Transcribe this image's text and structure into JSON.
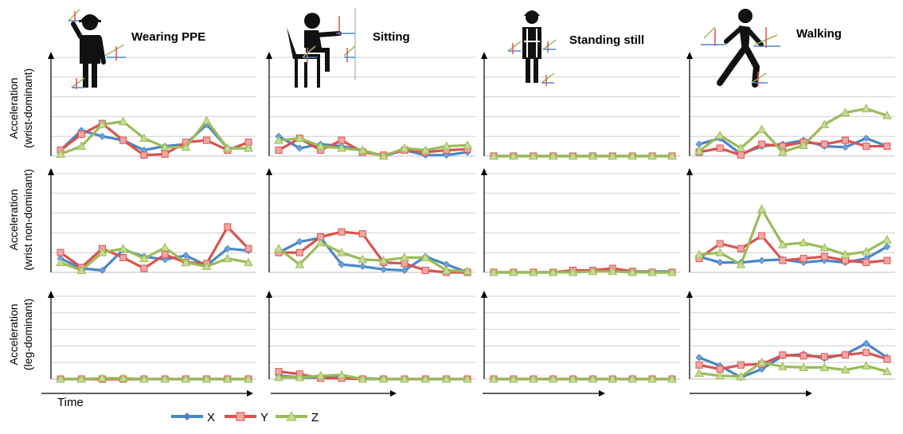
{
  "chart_data": {
    "type": "line",
    "layout": "grid-3x4",
    "columns": [
      {
        "title": "Wearing PPE",
        "icon": "worker-hardhat-icon"
      },
      {
        "title": "Sitting",
        "icon": "person-sitting-icon"
      },
      {
        "title": "Standing still",
        "icon": "worker-vest-standing-icon"
      },
      {
        "title": "Walking",
        "icon": "person-walking-icon"
      }
    ],
    "rows": [
      {
        "ylabel": [
          "Acceleration",
          "(wrist-dominant)"
        ]
      },
      {
        "ylabel": [
          "Acceleration",
          "(wrist non-dominant)"
        ]
      },
      {
        "ylabel": [
          "Acceleration",
          "(leg-dominant)"
        ]
      }
    ],
    "xlabel": "Time",
    "ylim": [
      0,
      5
    ],
    "grid": true,
    "legend_position": "bottom",
    "colors": {
      "X": "#4a86c8",
      "Y": "#d9534f",
      "Z": "#9bbb59"
    },
    "series_names": [
      "X",
      "Y",
      "Z"
    ],
    "panels": [
      [
        {
          "X": [
            0.3,
            1.3,
            1.0,
            0.8,
            0.3,
            0.5,
            0.6,
            1.6,
            0.4,
            0.4
          ],
          "Y": [
            0.3,
            1.1,
            1.65,
            0.8,
            0.05,
            0.1,
            0.7,
            0.8,
            0.3,
            0.7
          ],
          "Z": [
            0.1,
            0.5,
            1.6,
            1.75,
            0.9,
            0.45,
            0.45,
            1.8,
            0.4,
            0.4
          ]
        },
        {
          "X": [
            1.0,
            0.4,
            0.6,
            0.5,
            0.3,
            0.0,
            0.3,
            0.05,
            0.05,
            0.2
          ],
          "Y": [
            0.3,
            0.9,
            0.3,
            0.8,
            0.2,
            0.05,
            0.3,
            0.2,
            0.3,
            0.35
          ],
          "Z": [
            0.8,
            0.9,
            0.5,
            0.4,
            0.3,
            0.0,
            0.4,
            0.3,
            0.5,
            0.55
          ]
        },
        {
          "X": [
            0,
            0,
            0,
            0,
            0,
            0,
            0,
            0,
            0,
            0
          ],
          "Y": [
            0,
            0,
            0,
            0,
            0,
            0,
            0,
            0,
            0,
            0
          ],
          "Z": [
            0,
            0,
            0,
            0,
            0,
            0,
            0,
            0,
            0,
            0
          ]
        },
        {
          "X": [
            0.6,
            0.9,
            0.1,
            0.5,
            0.6,
            0.8,
            0.5,
            0.45,
            0.9,
            0.5
          ],
          "Y": [
            0.2,
            0.4,
            0.05,
            0.6,
            0.5,
            0.7,
            0.6,
            0.8,
            0.5,
            0.5
          ],
          "Z": [
            0.25,
            1.05,
            0.4,
            1.35,
            0.2,
            0.55,
            1.6,
            2.2,
            2.4,
            2.05
          ]
        }
      ],
      [
        {
          "X": [
            0.7,
            0.2,
            0.1,
            1.15,
            0.8,
            0.65,
            0.85,
            0.35,
            1.2,
            1.1
          ],
          "Y": [
            1.0,
            0.25,
            1.2,
            0.75,
            0.2,
            0.9,
            0.5,
            0.45,
            2.3,
            1.2
          ],
          "Z": [
            0.5,
            0.1,
            1.0,
            1.2,
            0.7,
            1.25,
            0.5,
            0.3,
            0.7,
            0.5
          ]
        },
        {
          "X": [
            1.0,
            1.55,
            1.75,
            0.4,
            0.3,
            0.15,
            0.1,
            0.8,
            0.4,
            0.0
          ],
          "Y": [
            1.0,
            1.0,
            1.8,
            2.05,
            1.95,
            0.5,
            0.45,
            0.1,
            0.0,
            0.0
          ],
          "Z": [
            1.2,
            0.4,
            1.5,
            1.0,
            0.65,
            0.6,
            0.75,
            0.75,
            0.1,
            0.05
          ]
        },
        {
          "X": [
            0,
            0,
            0,
            0,
            0.05,
            0.05,
            0.1,
            0.05,
            0.05,
            0.05
          ],
          "Y": [
            0,
            0,
            0,
            0,
            0.1,
            0.1,
            0.2,
            0.05,
            0,
            0
          ],
          "Z": [
            0,
            0,
            0,
            0,
            0,
            0.05,
            0.05,
            0,
            0,
            0
          ]
        },
        {
          "X": [
            0.8,
            0.5,
            0.5,
            0.6,
            0.65,
            0.5,
            0.6,
            0.5,
            0.7,
            1.3
          ],
          "Y": [
            0.7,
            1.45,
            1.2,
            1.85,
            0.6,
            0.7,
            0.8,
            0.6,
            0.5,
            0.6
          ],
          "Z": [
            0.9,
            1.0,
            0.4,
            3.2,
            1.4,
            1.5,
            1.25,
            0.9,
            1.05,
            1.65
          ]
        }
      ],
      [
        {
          "X": [
            0,
            0,
            0,
            0,
            0,
            0,
            0,
            0,
            0,
            0
          ],
          "Y": [
            0,
            0,
            0,
            0,
            0,
            0,
            0,
            0,
            0,
            0
          ],
          "Z": [
            0,
            0,
            0.05,
            0.05,
            0,
            0,
            0,
            0,
            0,
            0
          ]
        },
        {
          "X": [
            0.2,
            0.1,
            0.1,
            0.1,
            0.05,
            0,
            0,
            0,
            0,
            0
          ],
          "Y": [
            0.45,
            0.3,
            0.05,
            0.05,
            0,
            0,
            0,
            0,
            0,
            0
          ],
          "Z": [
            0.1,
            0.1,
            0.2,
            0.25,
            0,
            0,
            0,
            0,
            0,
            0
          ]
        },
        {
          "X": [
            0,
            0,
            0,
            0,
            0,
            0,
            0,
            0,
            0,
            0
          ],
          "Y": [
            0,
            0,
            0,
            0,
            0,
            0,
            0,
            0,
            0,
            0
          ],
          "Z": [
            0,
            0,
            0,
            0,
            0,
            0,
            0,
            0,
            0,
            0
          ]
        },
        {
          "X": [
            1.3,
            0.8,
            0.1,
            0.6,
            1.4,
            1.5,
            1.25,
            1.5,
            2.15,
            1.3
          ],
          "Y": [
            0.85,
            0.6,
            0.85,
            0.9,
            1.45,
            1.4,
            1.35,
            1.45,
            1.6,
            1.2
          ],
          "Z": [
            0.35,
            0.2,
            0.15,
            1.0,
            0.75,
            0.7,
            0.7,
            0.55,
            0.8,
            0.45
          ]
        }
      ]
    ]
  }
}
